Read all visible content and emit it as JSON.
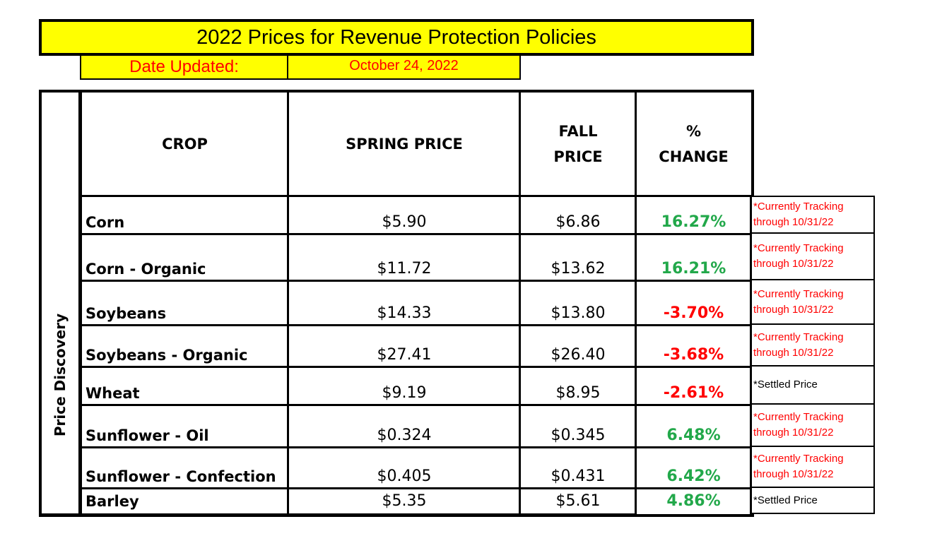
{
  "title": "2022 Prices for Revenue Protection Policies",
  "date_label": "Date Updated:",
  "date_value": "October 24, 2022",
  "side_label": "Price Discovery",
  "headers": {
    "crop": "CROP",
    "spring": "SPRING PRICE",
    "fall_line1": "FALL",
    "fall_line2": "PRICE",
    "change_line1": "%",
    "change_line2": "CHANGE"
  },
  "colors": {
    "banner": "#ffff00",
    "positive": "#22a84a",
    "negative": "#ff0000",
    "note_red": "#ff0000"
  },
  "rows": [
    {
      "crop": "Corn",
      "spring": "$5.90",
      "fall": "$6.86",
      "change": "16.27%",
      "dir": "up",
      "note1": "*Currently Tracking",
      "note2": "through 10/31/22",
      "note_type": "tracking"
    },
    {
      "crop": "Corn - Organic",
      "spring": "$11.72",
      "fall": "$13.62",
      "change": "16.21%",
      "dir": "up",
      "note1": "*Currently Tracking",
      "note2": "through 10/31/22",
      "note_type": "tracking"
    },
    {
      "crop": "Soybeans",
      "spring": "$14.33",
      "fall": "$13.80",
      "change": "-3.70%",
      "dir": "down",
      "note1": "*Currently Tracking",
      "note2": "through 10/31/22",
      "note_type": "tracking"
    },
    {
      "crop": "Soybeans - Organic",
      "spring": "$27.41",
      "fall": "$26.40",
      "change": "-3.68%",
      "dir": "down",
      "note1": "*Currently Tracking",
      "note2": "through 10/31/22",
      "note_type": "tracking"
    },
    {
      "crop": "Wheat",
      "spring": "$9.19",
      "fall": "$8.95",
      "change": "-2.61%",
      "dir": "down",
      "note1": "*Settled Price",
      "note2": "",
      "note_type": "settled"
    },
    {
      "crop": "Sunflower - Oil",
      "spring": "$0.324",
      "fall": "$0.345",
      "change": "6.48%",
      "dir": "up",
      "note1": "*Currently Tracking",
      "note2": "through 10/31/22",
      "note_type": "tracking"
    },
    {
      "crop": "Sunflower - Confection",
      "spring": "$0.405",
      "fall": "$0.431",
      "change": "6.42%",
      "dir": "up",
      "note1": "*Currently Tracking",
      "note2": "through 10/31/22",
      "note_type": "tracking"
    },
    {
      "crop": "Barley",
      "spring": "$5.35",
      "fall": "$5.61",
      "change": "4.86%",
      "dir": "up",
      "note1": "*Settled Price",
      "note2": "",
      "note_type": "settled"
    }
  ]
}
